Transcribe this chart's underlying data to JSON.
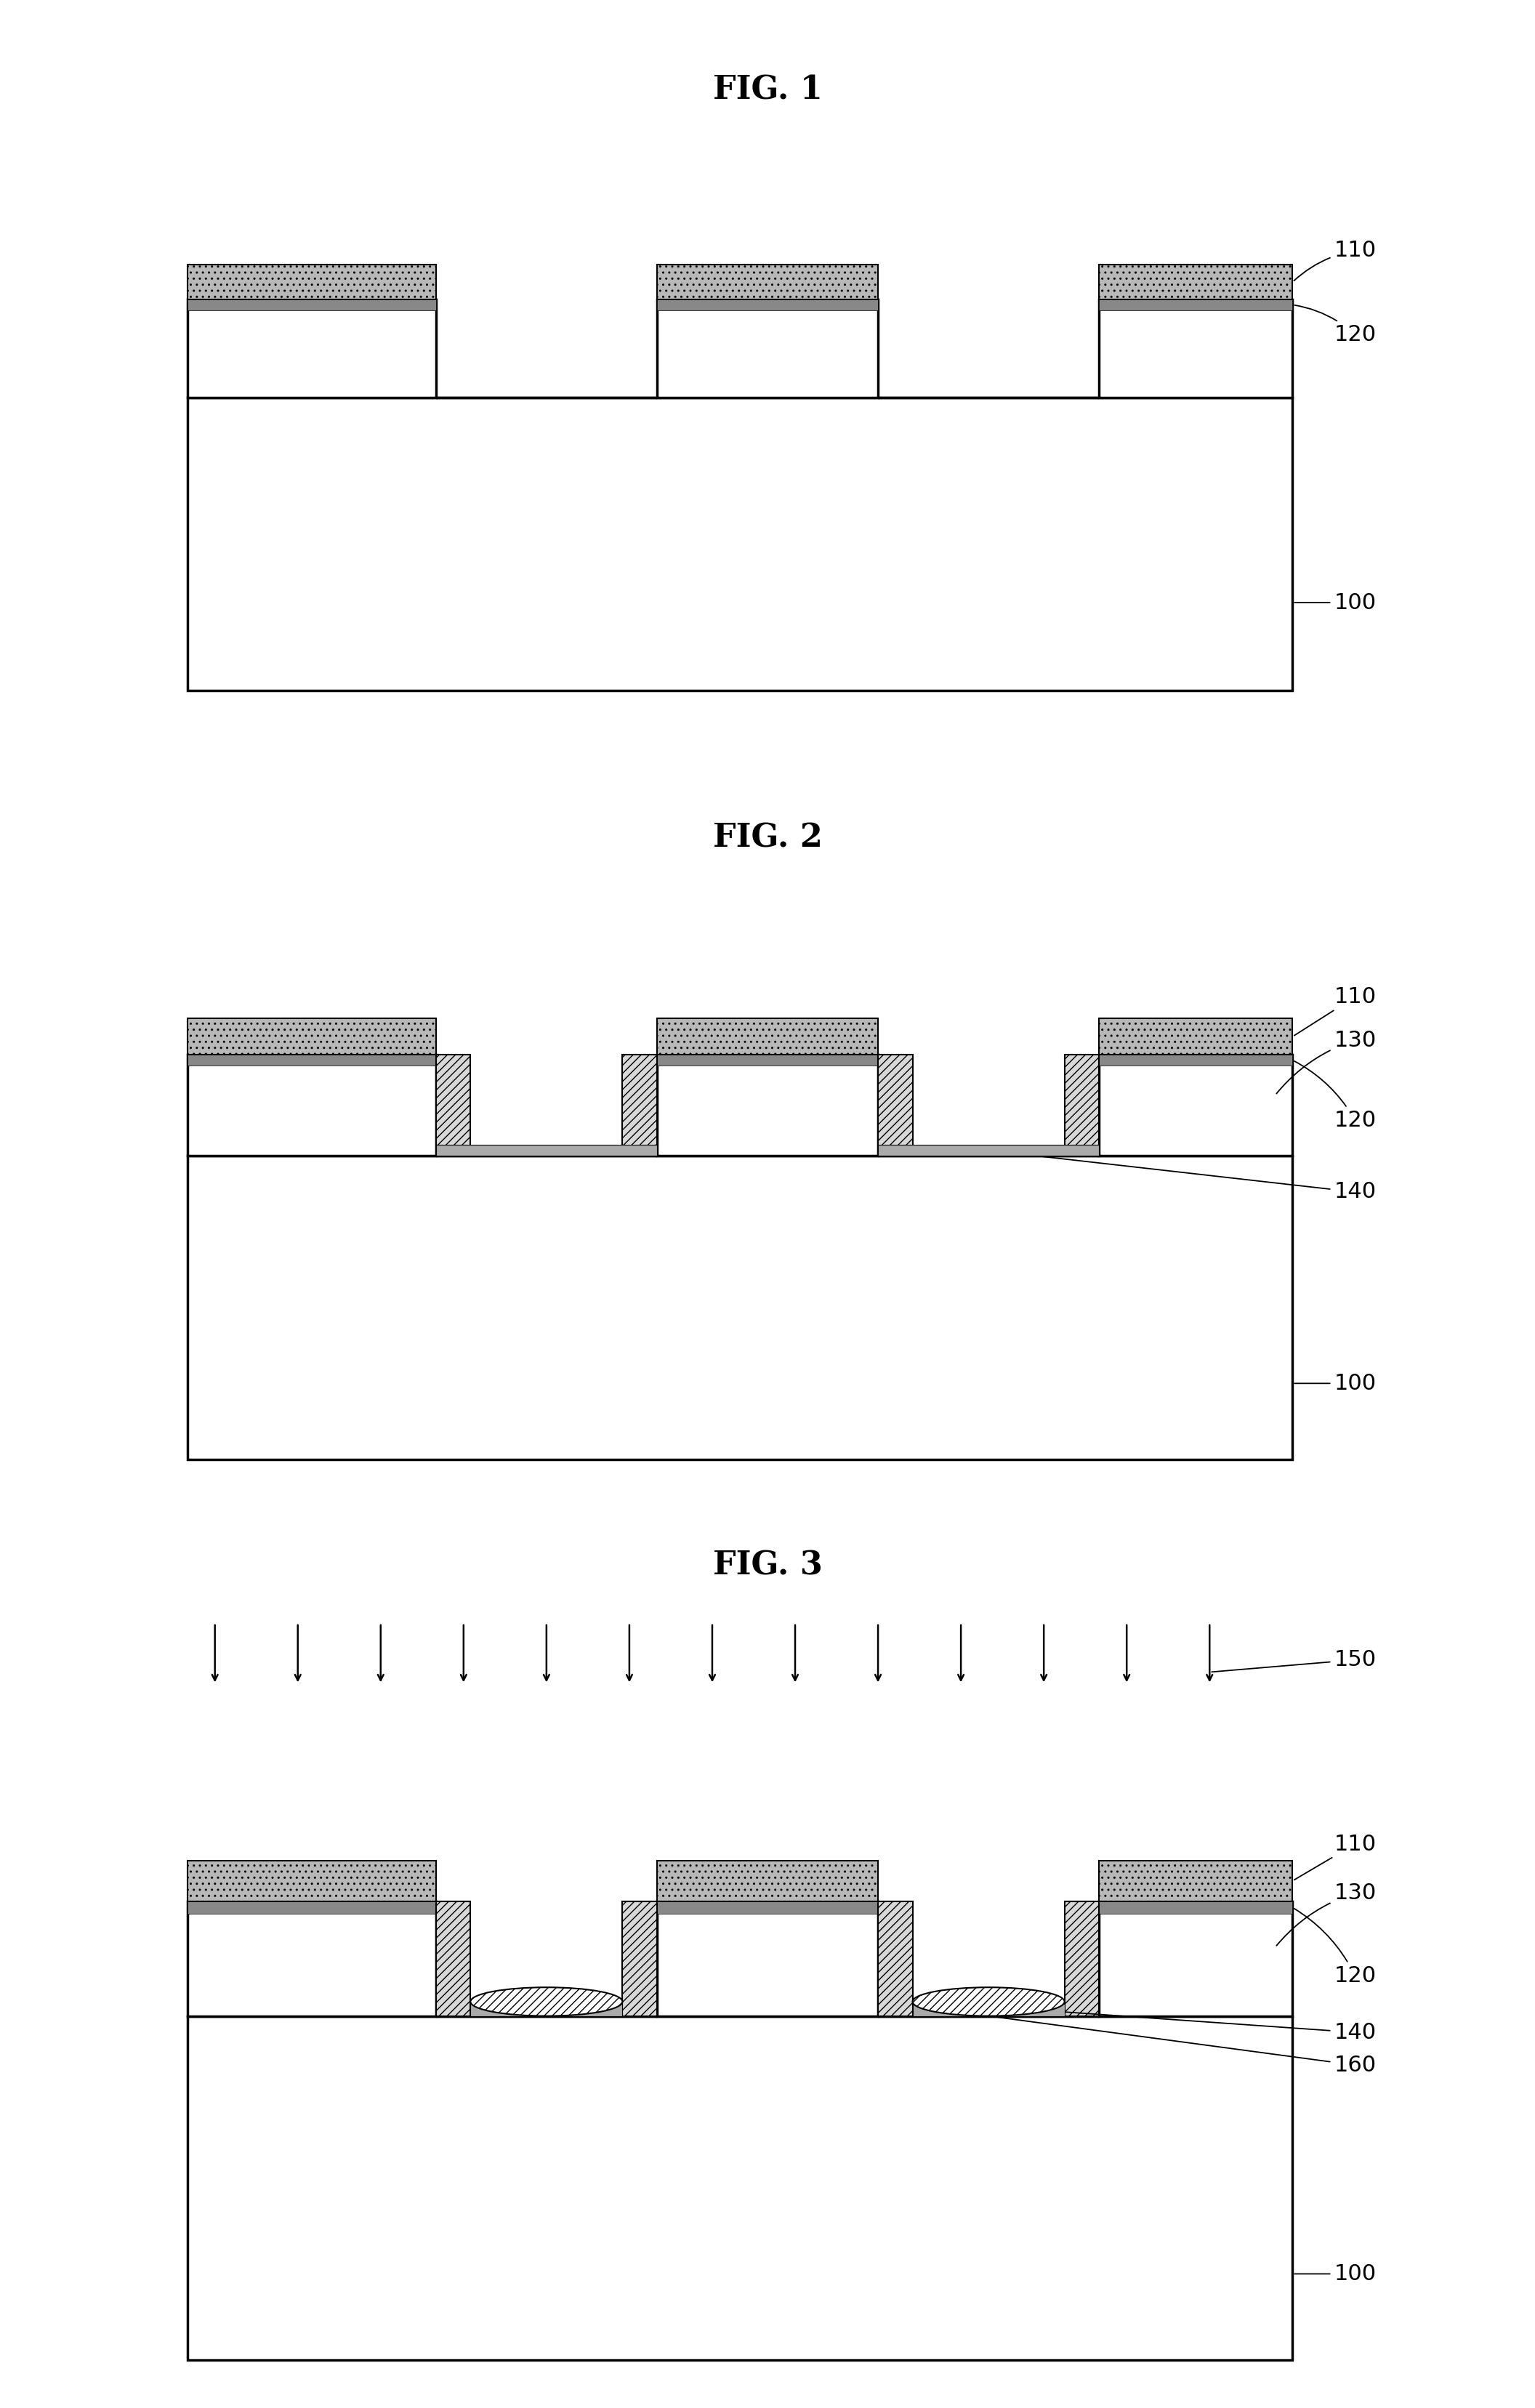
{
  "fig_titles": [
    "FIG. 1",
    "FIG. 2",
    "FIG. 3"
  ],
  "background_color": "#ffffff",
  "line_color": "#000000",
  "lw_main": 2.5,
  "lw_thin": 1.5,
  "nitride_fc": "#b8b8b8",
  "nitride_hatch": "..",
  "spacer_fc": "#d8d8d8",
  "spacer_hatch": "///",
  "implant_fc": "#ffffff",
  "implant_hatch": "///",
  "floor_fc": "#aaaaaa",
  "label_110": "110",
  "label_120": "120",
  "label_130": "130",
  "label_140": "140",
  "label_150": "150",
  "label_160": "160",
  "label_100": "100",
  "font_size_title": 32,
  "font_size_label": 22,
  "title_font": "DejaVu Serif"
}
